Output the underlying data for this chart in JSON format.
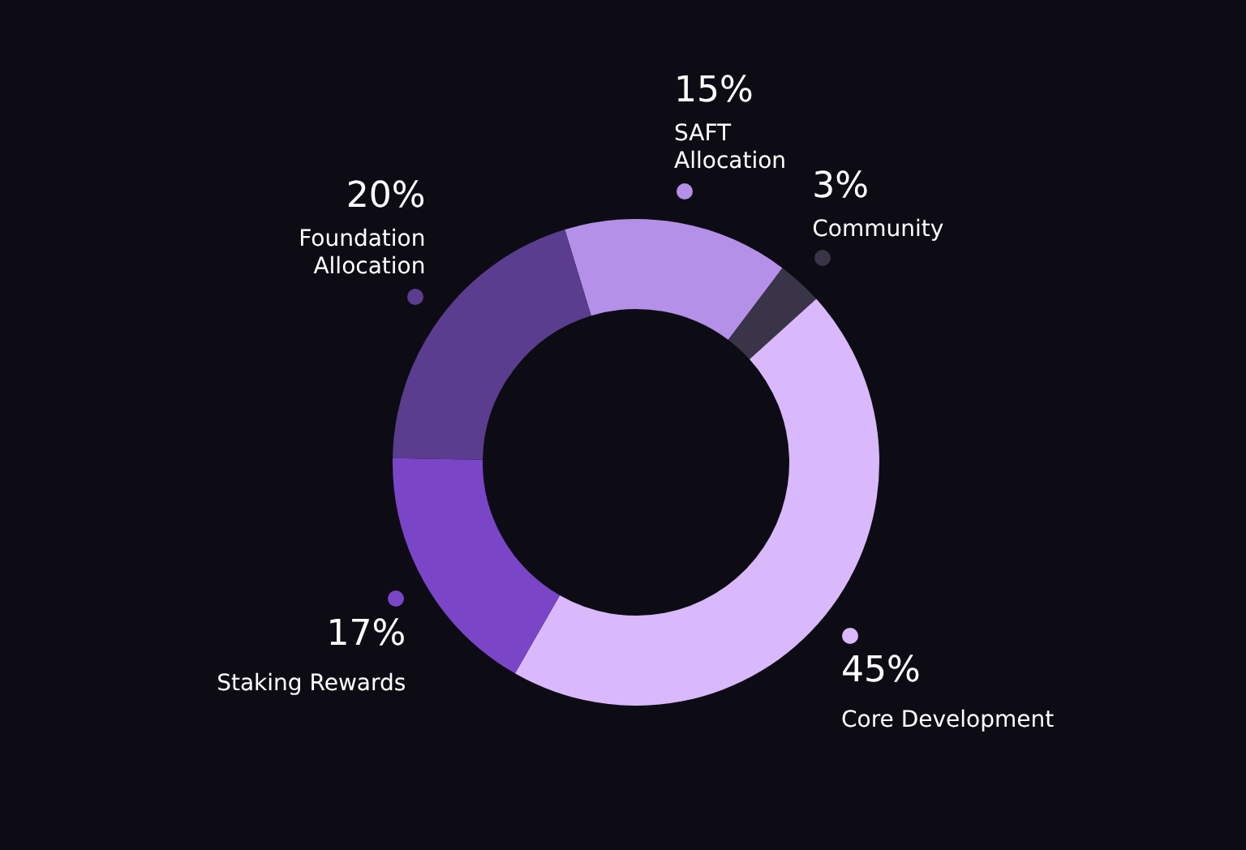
{
  "chart_data": {
    "type": "donut",
    "categories": [
      "SAFT Allocation",
      "Community",
      "Core Development",
      "Staking Rewards",
      "Foundation Allocation"
    ],
    "values": [
      15,
      3,
      45,
      17,
      20
    ],
    "value_labels": [
      "15%",
      "3%",
      "45%",
      "17%",
      "20%"
    ],
    "colors": [
      "#b490e8",
      "#3a3448",
      "#d9b8fc",
      "#7b45c8",
      "#5b3d8f"
    ],
    "legend": false
  }
}
